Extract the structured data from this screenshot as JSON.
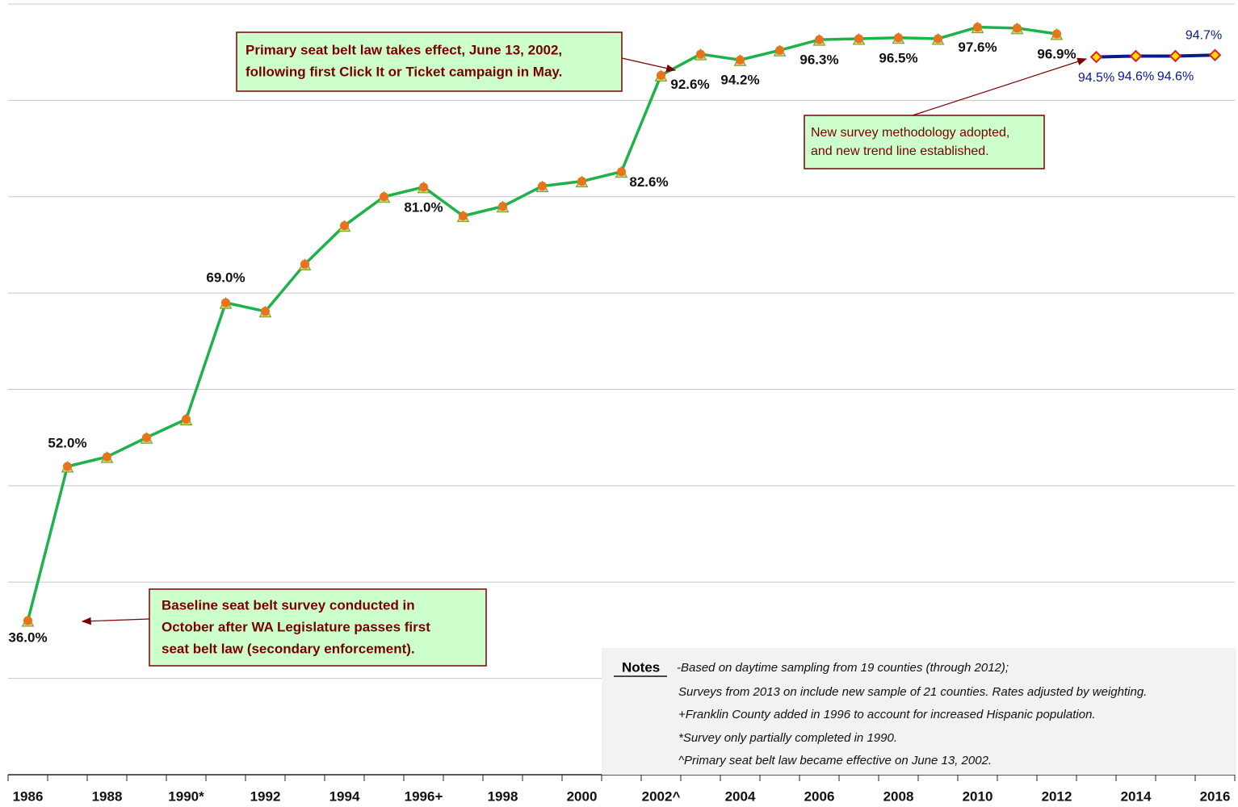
{
  "chart_data": {
    "type": "line",
    "categories": [
      "1986",
      null,
      "1988",
      null,
      "1990*",
      null,
      "1992",
      null,
      "1994",
      null,
      "1996+",
      null,
      "1998",
      null,
      "2000",
      null,
      "2002^",
      null,
      "2004",
      null,
      "2006",
      null,
      "2008",
      null,
      "2010",
      null,
      "2012",
      null,
      "2014",
      null,
      "2016"
    ],
    "series": [
      {
        "color": "#1db34a",
        "marker_color": "#e8731a",
        "values": [
          36.0,
          52.0,
          53.0,
          55.0,
          56.9,
          69.0,
          68.1,
          73.0,
          77.0,
          80.0,
          81.0,
          78.0,
          79.0,
          81.1,
          81.6,
          82.6,
          92.6,
          94.8,
          94.2,
          95.2,
          96.3,
          96.4,
          96.5,
          96.4,
          97.6,
          97.5,
          96.9,
          null,
          null,
          null,
          null
        ],
        "value_labels": [
          "36.0%",
          "52.0%",
          null,
          null,
          null,
          "69.0%",
          null,
          null,
          null,
          null,
          "81.0%",
          null,
          null,
          null,
          null,
          "82.6%",
          "92.6%",
          null,
          "94.2%",
          null,
          "96.3%",
          null,
          "96.5%",
          null,
          "97.6%",
          null,
          "96.9%",
          null,
          null,
          null,
          null
        ]
      },
      {
        "color": "#0a1a8c",
        "marker_color": "#ffe000",
        "values": [
          null,
          null,
          null,
          null,
          null,
          null,
          null,
          null,
          null,
          null,
          null,
          null,
          null,
          null,
          null,
          null,
          null,
          null,
          null,
          null,
          null,
          null,
          null,
          null,
          null,
          null,
          null,
          94.5,
          94.6,
          94.6,
          94.7
        ],
        "value_labels": [
          null,
          null,
          null,
          null,
          null,
          null,
          null,
          null,
          null,
          null,
          null,
          null,
          null,
          null,
          null,
          null,
          null,
          null,
          null,
          null,
          null,
          null,
          null,
          null,
          null,
          null,
          null,
          "94.5%",
          "94.6%",
          "94.6%",
          "94.7%"
        ]
      }
    ],
    "ylim": [
      20,
      100
    ],
    "yticks": [
      30,
      40,
      50,
      60,
      70,
      80,
      90,
      100
    ],
    "grid": true,
    "annotations": [
      {
        "lines": [
          "Primary seat belt law takes effect, June 13, 2002,",
          "following first Click It or Ticket campaign in May."
        ]
      },
      {
        "lines": [
          "New survey methodology adopted,",
          "and new trend line established."
        ]
      },
      {
        "lines": [
          "Baseline seat belt survey conducted in",
          "October after WA Legislature passes  first",
          "seat belt law (secondary enforcement)."
        ]
      }
    ],
    "notes": {
      "title": "Notes",
      "lines": [
        "-Based on daytime sampling from 19 counties (through 2012);",
        "Surveys from 2013 on include new sample of 21 counties. Rates adjusted by weighting.",
        "+Franklin County added in 1996 to account for increased Hispanic population.",
        "*Survey only partially completed in 1990.",
        "^Primary seat belt law became effective on June 13, 2002."
      ]
    }
  }
}
